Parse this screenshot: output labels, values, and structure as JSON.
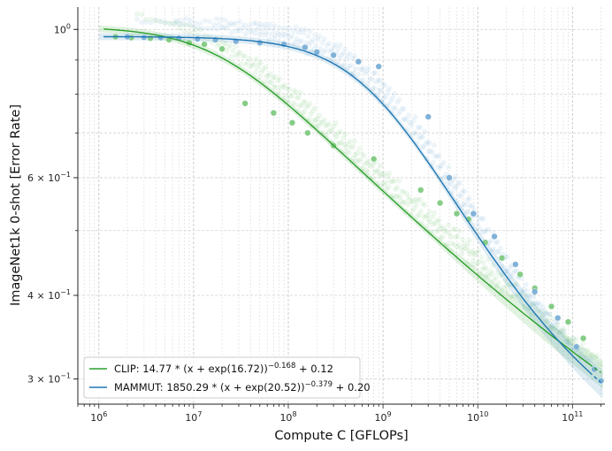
{
  "chart_data": {
    "type": "scatter",
    "xlabel": "Compute C [GFLOPs]",
    "ylabel": "ImageNet1k 0-shot [Error Rate]",
    "x_scale": "log",
    "y_scale": "log",
    "xlim": [
      600000,
      220000000000
    ],
    "ylim": [
      0.275,
      1.08
    ],
    "grid": true,
    "legend_position": "lower-left",
    "x_ticks": [
      {
        "value": 1000000,
        "base": "10",
        "exp": "6"
      },
      {
        "value": 10000000,
        "base": "10",
        "exp": "7"
      },
      {
        "value": 100000000,
        "base": "10",
        "exp": "8"
      },
      {
        "value": 1000000000,
        "base": "10",
        "exp": "9"
      },
      {
        "value": 10000000000,
        "base": "10",
        "exp": "10"
      },
      {
        "value": 100000000000,
        "base": "10",
        "exp": "11"
      }
    ],
    "y_ticks": [
      {
        "value": 1.0,
        "base": "10",
        "exp": "0"
      },
      {
        "value": 0.6,
        "base": "6 × 10",
        "exp": "−1"
      },
      {
        "value": 0.4,
        "base": "4 × 10",
        "exp": "−1"
      },
      {
        "value": 0.3,
        "base": "3 × 10",
        "exp": "−1"
      }
    ],
    "series": [
      {
        "name": "CLIP",
        "color": "#2ca02c",
        "point_color": "#7fc97f",
        "legend_label": "CLIP: 14.77 * (x + exp(16.72))^(−0.168) + 0.12",
        "legend_parts": {
          "prefix": "CLIP: 14.77 * (x + exp(16.72))",
          "exponent": "−0.168",
          "suffix": " + 0.12"
        },
        "fit": {
          "a": 14.77,
          "b": 16.72,
          "alpha": 0.168,
          "c": 0.12
        },
        "points": [
          {
            "x": 1500000,
            "y": 0.975
          },
          {
            "x": 2200000,
            "y": 0.972
          },
          {
            "x": 3500000,
            "y": 0.97
          },
          {
            "x": 5500000,
            "y": 0.965
          },
          {
            "x": 9000000,
            "y": 0.955
          },
          {
            "x": 13000000,
            "y": 0.95
          },
          {
            "x": 20000000,
            "y": 0.935
          },
          {
            "x": 35000000,
            "y": 0.775
          },
          {
            "x": 70000000,
            "y": 0.75
          },
          {
            "x": 110000000,
            "y": 0.725
          },
          {
            "x": 160000000,
            "y": 0.7
          },
          {
            "x": 300000000,
            "y": 0.67
          },
          {
            "x": 800000000,
            "y": 0.64
          },
          {
            "x": 2500000000,
            "y": 0.575
          },
          {
            "x": 4000000000,
            "y": 0.55
          },
          {
            "x": 6000000000,
            "y": 0.53
          },
          {
            "x": 8000000000,
            "y": 0.52
          },
          {
            "x": 12000000000,
            "y": 0.48
          },
          {
            "x": 18000000000,
            "y": 0.455
          },
          {
            "x": 28000000000,
            "y": 0.43
          },
          {
            "x": 40000000000,
            "y": 0.41
          },
          {
            "x": 60000000000,
            "y": 0.385
          },
          {
            "x": 90000000000,
            "y": 0.365
          },
          {
            "x": 130000000000,
            "y": 0.345
          }
        ]
      },
      {
        "name": "MAMMUT",
        "color": "#1f77b4",
        "point_color": "#7aaed6",
        "legend_label": "MAMMUT: 1850.29 * (x + exp(20.52))^(−0.379) + 0.20",
        "legend_parts": {
          "prefix": "MAMMUT: 1850.29 * (x + exp(20.52))",
          "exponent": "−0.379",
          "suffix": " + 0.20"
        },
        "fit": {
          "a": 1850.29,
          "b": 20.52,
          "alpha": 0.379,
          "c": 0.2
        },
        "points": [
          {
            "x": 2000000,
            "y": 0.975
          },
          {
            "x": 3000000,
            "y": 0.973
          },
          {
            "x": 4500000,
            "y": 0.972
          },
          {
            "x": 7000000,
            "y": 0.97
          },
          {
            "x": 11000000,
            "y": 0.968
          },
          {
            "x": 17000000,
            "y": 0.965
          },
          {
            "x": 28000000,
            "y": 0.96
          },
          {
            "x": 50000000,
            "y": 0.955
          },
          {
            "x": 90000000,
            "y": 0.95
          },
          {
            "x": 150000000,
            "y": 0.94
          },
          {
            "x": 200000000,
            "y": 0.925
          },
          {
            "x": 300000000,
            "y": 0.915
          },
          {
            "x": 550000000,
            "y": 0.895
          },
          {
            "x": 900000000,
            "y": 0.88
          },
          {
            "x": 3000000000,
            "y": 0.74
          },
          {
            "x": 5000000000,
            "y": 0.6
          },
          {
            "x": 9000000000,
            "y": 0.53
          },
          {
            "x": 15000000000,
            "y": 0.49
          },
          {
            "x": 25000000000,
            "y": 0.445
          },
          {
            "x": 40000000000,
            "y": 0.405
          },
          {
            "x": 70000000000,
            "y": 0.37
          },
          {
            "x": 110000000000,
            "y": 0.335
          },
          {
            "x": 170000000000,
            "y": 0.31
          },
          {
            "x": 200000000000,
            "y": 0.298
          }
        ]
      }
    ]
  }
}
